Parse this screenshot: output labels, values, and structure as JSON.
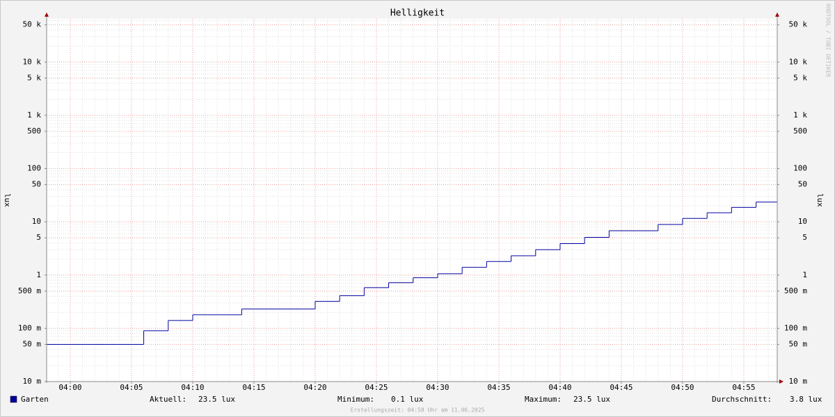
{
  "chart_data": {
    "type": "line",
    "step": true,
    "title": "Helligkeit",
    "y_label": "lux",
    "y2_label": "lux",
    "watermark": "RRDTOOL / TOBI OETIKER",
    "footer": "Erstellungszeit: 04:58 Uhr am 11.06.2025",
    "log_scale": true,
    "grid": true,
    "minor_grid": true,
    "xlim": [
      -1.93,
      57.73
    ],
    "ylim": [
      0.01,
      65000
    ],
    "xticks": [
      {
        "value": 0,
        "label": "04:00"
      },
      {
        "value": 5,
        "label": "04:05"
      },
      {
        "value": 10,
        "label": "04:10"
      },
      {
        "value": 15,
        "label": "04:15"
      },
      {
        "value": 20,
        "label": "04:20"
      },
      {
        "value": 25,
        "label": "04:25"
      },
      {
        "value": 30,
        "label": "04:30"
      },
      {
        "value": 35,
        "label": "04:35"
      },
      {
        "value": 40,
        "label": "04:40"
      },
      {
        "value": 45,
        "label": "04:45"
      },
      {
        "value": 50,
        "label": "04:50"
      },
      {
        "value": 55,
        "label": "04:55"
      }
    ],
    "yticks": [
      {
        "value": 0.01,
        "label": "10 m"
      },
      {
        "value": 0.05,
        "label": "50 m"
      },
      {
        "value": 0.1,
        "label": "100 m"
      },
      {
        "value": 0.5,
        "label": "500 m"
      },
      1,
      5,
      10,
      50,
      100,
      500,
      {
        "value": 1000,
        "label": "1 k"
      },
      {
        "value": 5000,
        "label": "5 k"
      },
      {
        "value": 10000,
        "label": "10 k"
      },
      {
        "value": 50000,
        "label": "50 k"
      }
    ],
    "x": [
      -1.93,
      6,
      8,
      10,
      14,
      20,
      22,
      24,
      26,
      28,
      30,
      32,
      34,
      36,
      38,
      40,
      42,
      44,
      48,
      50,
      52,
      54,
      56
    ],
    "series": [
      {
        "name": "Garten",
        "color": "#0000a0",
        "values": [
          0.05,
          0.09,
          0.14,
          0.18,
          0.23,
          0.32,
          0.41,
          0.58,
          0.72,
          0.89,
          1.06,
          1.4,
          1.8,
          2.3,
          3.0,
          3.9,
          5.1,
          6.8,
          8.9,
          11.6,
          14.8,
          18.7,
          23.5
        ]
      }
    ],
    "stats": [
      {
        "label": "Aktuell:",
        "value": "23.5 lux"
      },
      {
        "label": "Minimum:",
        "value": "0.1 lux"
      },
      {
        "label": "Maximum:",
        "value": "23.5 lux"
      },
      {
        "label": "Durchschnitt:",
        "value": "3.8 lux"
      }
    ]
  }
}
